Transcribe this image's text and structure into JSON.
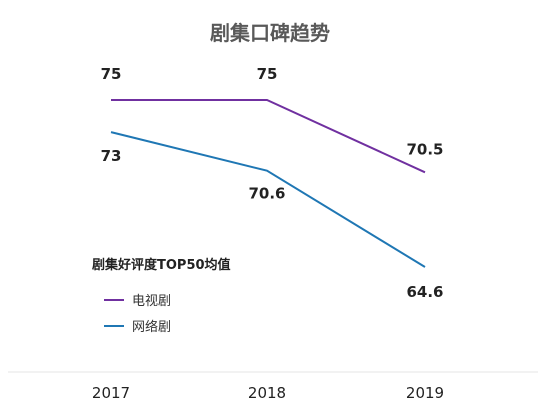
{
  "chart_data": {
    "type": "line",
    "title": "剧集口碑趋势",
    "xlabel": "",
    "ylabel": "",
    "categories": [
      "2017",
      "2018",
      "2019"
    ],
    "ylim": [
      60,
      78
    ],
    "legend_title": "剧集好评度TOP50均值",
    "legend_position": "left",
    "grid": false,
    "series": [
      {
        "name": "电视剧",
        "values": [
          75,
          75,
          70.5
        ],
        "labels": [
          "75",
          "75",
          "70.5"
        ],
        "color": "#7030a0"
      },
      {
        "name": "网络剧",
        "values": [
          73,
          70.6,
          64.6
        ],
        "labels": [
          "73",
          "70.6",
          "64.6"
        ],
        "color": "#1f77b4"
      }
    ]
  }
}
